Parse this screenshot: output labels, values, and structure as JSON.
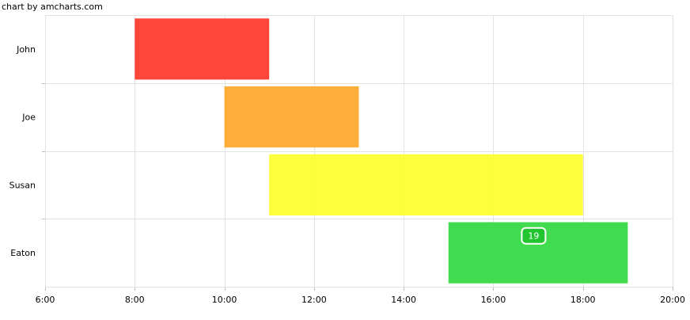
{
  "credit": "chart by amcharts.com",
  "chart_data": {
    "type": "bar",
    "orientation": "horizontal",
    "title": "",
    "xlabel": "",
    "ylabel": "",
    "grid": true,
    "categories": [
      "John",
      "Joe",
      "Susan",
      "Eaton"
    ],
    "x_ticks": [
      "6:00",
      "8:00",
      "10:00",
      "12:00",
      "14:00",
      "16:00",
      "18:00",
      "20:00"
    ],
    "xlim": [
      6,
      20
    ],
    "bars": [
      {
        "category": "John",
        "start": 8,
        "end": 11,
        "color": "#ff3d2e"
      },
      {
        "category": "Joe",
        "start": 10,
        "end": 13,
        "color": "#ffab2e"
      },
      {
        "category": "Susan",
        "start": 11,
        "end": 18,
        "color": "#fcff2e"
      },
      {
        "category": "Eaton",
        "start": 15,
        "end": 19,
        "color": "#36d944"
      }
    ],
    "annotation": {
      "category": "Eaton",
      "x": 16.9,
      "text": "19"
    }
  }
}
